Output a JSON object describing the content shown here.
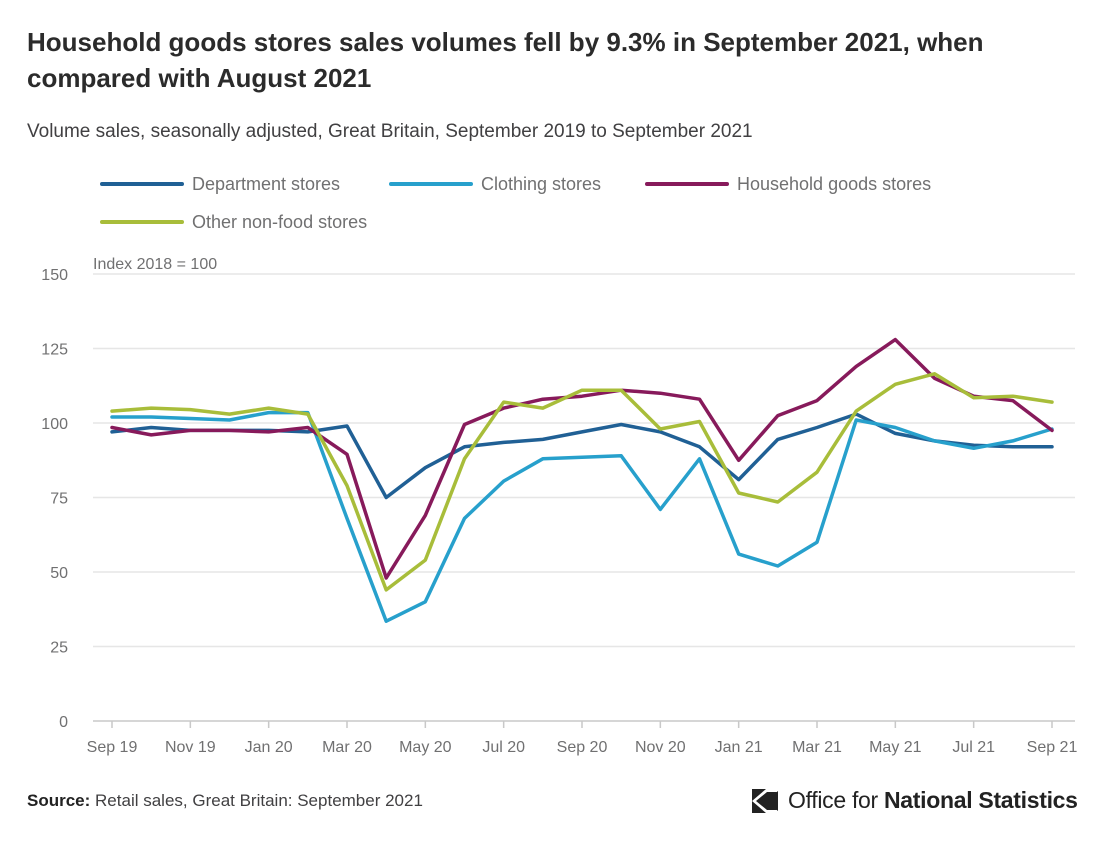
{
  "title": "Household goods stores sales volumes fell by 9.3% in September 2021, when compared with August 2021",
  "subtitle": "Volume sales, seasonally adjusted, Great Britain, September 2019 to September 2021",
  "source": {
    "label": "Source:",
    "text": "Retail sales, Great Britain: September 2021"
  },
  "logo": {
    "text_regular": "Office for",
    "text_bold": "National Statistics"
  },
  "chart_data": {
    "type": "line",
    "y_unit_label": "Index 2018 = 100",
    "ylim": [
      0,
      150
    ],
    "y_ticks": [
      0,
      25,
      50,
      75,
      100,
      125,
      150
    ],
    "grid": true,
    "legend_position": "top",
    "x": [
      "Sep 19",
      "Oct 19",
      "Nov 19",
      "Dec 19",
      "Jan 20",
      "Feb 20",
      "Mar 20",
      "Apr 20",
      "May 20",
      "Jun 20",
      "Jul 20",
      "Aug 20",
      "Sep 20",
      "Oct 20",
      "Nov 20",
      "Dec 20",
      "Jan 21",
      "Feb 21",
      "Mar 21",
      "Apr 21",
      "May 21",
      "Jun 21",
      "Jul 21",
      "Aug 21",
      "Sep 21"
    ],
    "x_tick_labels": [
      "Sep 19",
      "Nov 19",
      "Jan 20",
      "Mar 20",
      "May 20",
      "Jul 20",
      "Sep 20",
      "Nov 20",
      "Jan 21",
      "Mar 21",
      "May 21",
      "Jul 21",
      "Sep 21"
    ],
    "series": [
      {
        "name": "Department stores",
        "color": "#206095",
        "values": [
          97,
          98.5,
          97.5,
          97.5,
          97.5,
          97,
          99,
          75,
          85,
          92,
          93.5,
          94.5,
          97,
          99.5,
          97,
          92,
          81,
          94.5,
          98.5,
          103,
          96.5,
          94,
          92.5,
          92,
          92
        ]
      },
      {
        "name": "Clothing stores",
        "color": "#27a0cc",
        "values": [
          102,
          102,
          101.5,
          101,
          103.5,
          103.5,
          68,
          33.5,
          40,
          68,
          80.5,
          88,
          88.5,
          89,
          71,
          88,
          56,
          52,
          60,
          101,
          98.5,
          94,
          91.5,
          94,
          98
        ]
      },
      {
        "name": "Household goods stores",
        "color": "#871a5b",
        "values": [
          98.5,
          96,
          97.5,
          97.5,
          97,
          98.5,
          89.5,
          48,
          69,
          99.5,
          105,
          108,
          109,
          111,
          110,
          108,
          87.5,
          102.5,
          107.5,
          119,
          128,
          115,
          109,
          107.5,
          97.5
        ]
      },
      {
        "name": "Other non-food stores",
        "color": "#a8bd3a",
        "values": [
          104,
          105,
          104.5,
          103,
          105,
          103,
          79,
          44,
          54,
          88,
          107,
          105,
          111,
          111,
          98,
          100.5,
          76.5,
          73.5,
          83.5,
          104,
          113,
          116.5,
          108.5,
          109,
          107
        ]
      }
    ]
  }
}
